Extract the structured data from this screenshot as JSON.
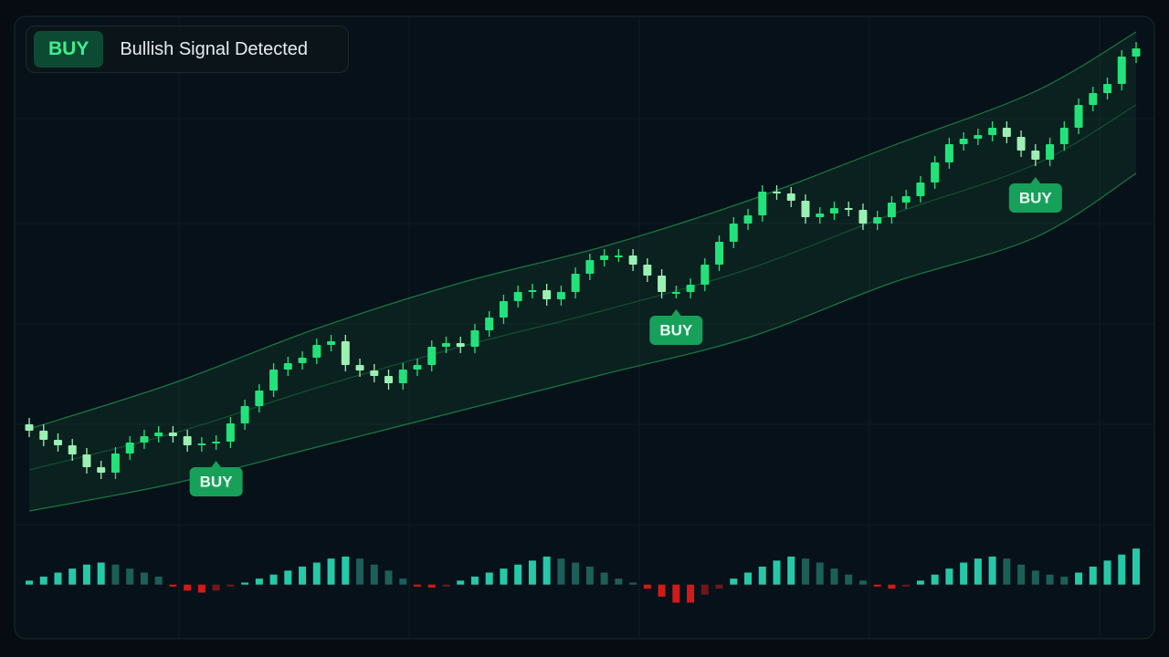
{
  "header": {
    "badge": "BUY",
    "text": "Bullish Signal Detected"
  },
  "chart_data": {
    "type": "candlestick",
    "ylim": [
      4,
      116
    ],
    "open": [
      27,
      25.6,
      23.6,
      22.4,
      20.4,
      17.6,
      16.4,
      20.6,
      23,
      24.4,
      25.2,
      24.4,
      22.4,
      22.8,
      23.2,
      27.2,
      31,
      34.4,
      39,
      40.4,
      41.6,
      44.4,
      45.2,
      40,
      38.8,
      37.6,
      36,
      39,
      40,
      44,
      44.8,
      44,
      47.6,
      50.4,
      54,
      56,
      56.4,
      54.4,
      56,
      60,
      63,
      64,
      64,
      62,
      59.6,
      56,
      56,
      57.6,
      62,
      67,
      71,
      72.8,
      78,
      77.6,
      76,
      72.4,
      73.2,
      74.4,
      74,
      71,
      72.4,
      75.6,
      77,
      80,
      84.4,
      88.4,
      89.6,
      90.4,
      92,
      90,
      87,
      85,
      88.4,
      92,
      97,
      99.6,
      101.6,
      107.6
    ],
    "high": [
      28.4,
      27,
      25,
      23.8,
      21.8,
      19,
      22,
      24.4,
      25.8,
      26.6,
      26.6,
      25.8,
      24.2,
      24.6,
      28.6,
      32.4,
      35.8,
      40.4,
      41.8,
      43,
      45.8,
      46.6,
      46.6,
      41.4,
      40.2,
      39,
      40.4,
      41.4,
      45.4,
      46.2,
      46.2,
      49,
      51.8,
      55.4,
      57.4,
      57.8,
      57.8,
      57.4,
      61.4,
      64.4,
      65.4,
      65.4,
      65.4,
      63.4,
      61,
      57.4,
      59,
      63.4,
      68.4,
      72.4,
      74.2,
      79.4,
      79.4,
      79,
      77.4,
      74.6,
      75.8,
      75.8,
      75.4,
      73.8,
      77,
      78.4,
      81.4,
      85.8,
      89.8,
      91,
      91.8,
      93.4,
      93.4,
      91.4,
      88.4,
      89.8,
      93.4,
      98.4,
      101,
      103,
      109,
      110.8
    ],
    "low": [
      24.2,
      22.2,
      21,
      19,
      16.2,
      15,
      15,
      19.2,
      21.6,
      23,
      23,
      21,
      21,
      21.4,
      21.8,
      25.8,
      29.6,
      33,
      37.6,
      39,
      40.2,
      43,
      38.6,
      37.4,
      36.2,
      34.6,
      34.6,
      37.6,
      38.6,
      42.6,
      42.6,
      42.6,
      46.2,
      49,
      52.6,
      54.6,
      53,
      53,
      54.6,
      58.6,
      61.6,
      62.6,
      60.6,
      58.2,
      54.6,
      54.6,
      54.6,
      56.2,
      60.6,
      65.6,
      69.6,
      71.4,
      76.2,
      74.6,
      71,
      71,
      71.8,
      72.6,
      69.6,
      69.6,
      71,
      74.2,
      75.6,
      78.6,
      83,
      87,
      88.2,
      89,
      88.6,
      85.6,
      83.6,
      83.6,
      87,
      90.6,
      95.6,
      98.2,
      100.2,
      106.2
    ],
    "close": [
      25.6,
      23.6,
      22.4,
      20.4,
      17.6,
      16.4,
      20.6,
      23,
      24.4,
      25.2,
      24.4,
      22.4,
      22.8,
      23.2,
      27.2,
      31,
      34.4,
      39,
      40.4,
      41.6,
      44.4,
      45.2,
      40,
      38.8,
      37.6,
      36,
      39,
      40,
      44,
      44.8,
      44,
      47.6,
      50.4,
      54,
      56,
      56.4,
      54.4,
      56,
      60,
      63,
      64,
      64,
      62,
      59.6,
      56,
      56,
      57.6,
      62,
      67,
      71,
      72.8,
      78,
      77.6,
      76,
      72.4,
      73.2,
      74.4,
      74,
      71,
      72.4,
      75.6,
      77,
      80,
      84.4,
      88.4,
      89.6,
      90.4,
      92,
      90,
      87,
      85,
      88.4,
      92,
      97,
      99.6,
      101.6,
      107.6,
      109.4
    ],
    "colors": {
      "up": "#22e27a",
      "down": "#9bf0b2"
    },
    "band_x": [
      0,
      10,
      20,
      30,
      40,
      50,
      60,
      70,
      77
    ],
    "band_upper": [
      26,
      36,
      48,
      58,
      66,
      76,
      88,
      100,
      113
    ],
    "band_middle": [
      17,
      25,
      35,
      44,
      52,
      61,
      73,
      84,
      97
    ],
    "band_lower": [
      8,
      14,
      22,
      30,
      38,
      46,
      58,
      68,
      82
    ],
    "band_color": "#1f9a4a",
    "histogram": {
      "values": [
        2,
        4,
        6,
        8,
        10,
        11,
        10,
        8,
        6,
        4,
        -1,
        -3,
        -4,
        -3,
        -1,
        1,
        3,
        5,
        7,
        9,
        11,
        13,
        14,
        13,
        10,
        7,
        3,
        -1,
        -1.5,
        -1,
        2,
        4,
        6,
        8,
        10,
        12,
        14,
        13,
        11,
        9,
        6,
        3,
        1,
        -2,
        -6,
        -9,
        -9,
        -5,
        -2,
        3,
        6,
        9,
        12,
        14,
        13,
        11,
        8,
        5,
        2,
        -1,
        -2,
        -1,
        2,
        5,
        8,
        11,
        13,
        14,
        13,
        10,
        7,
        5,
        4,
        6,
        9,
        12,
        15,
        18
      ],
      "ylim": [
        -12,
        24
      ],
      "colors": {
        "up": "#25c9a8",
        "fade": "#1c5f58",
        "down": "#d11a1a",
        "down_fade": "#6e1818"
      }
    },
    "signals": [
      {
        "label": "BUY",
        "at": 13
      },
      {
        "label": "BUY",
        "at": 45
      },
      {
        "label": "BUY",
        "at": 70
      }
    ],
    "signal_color": "#17a05a"
  }
}
